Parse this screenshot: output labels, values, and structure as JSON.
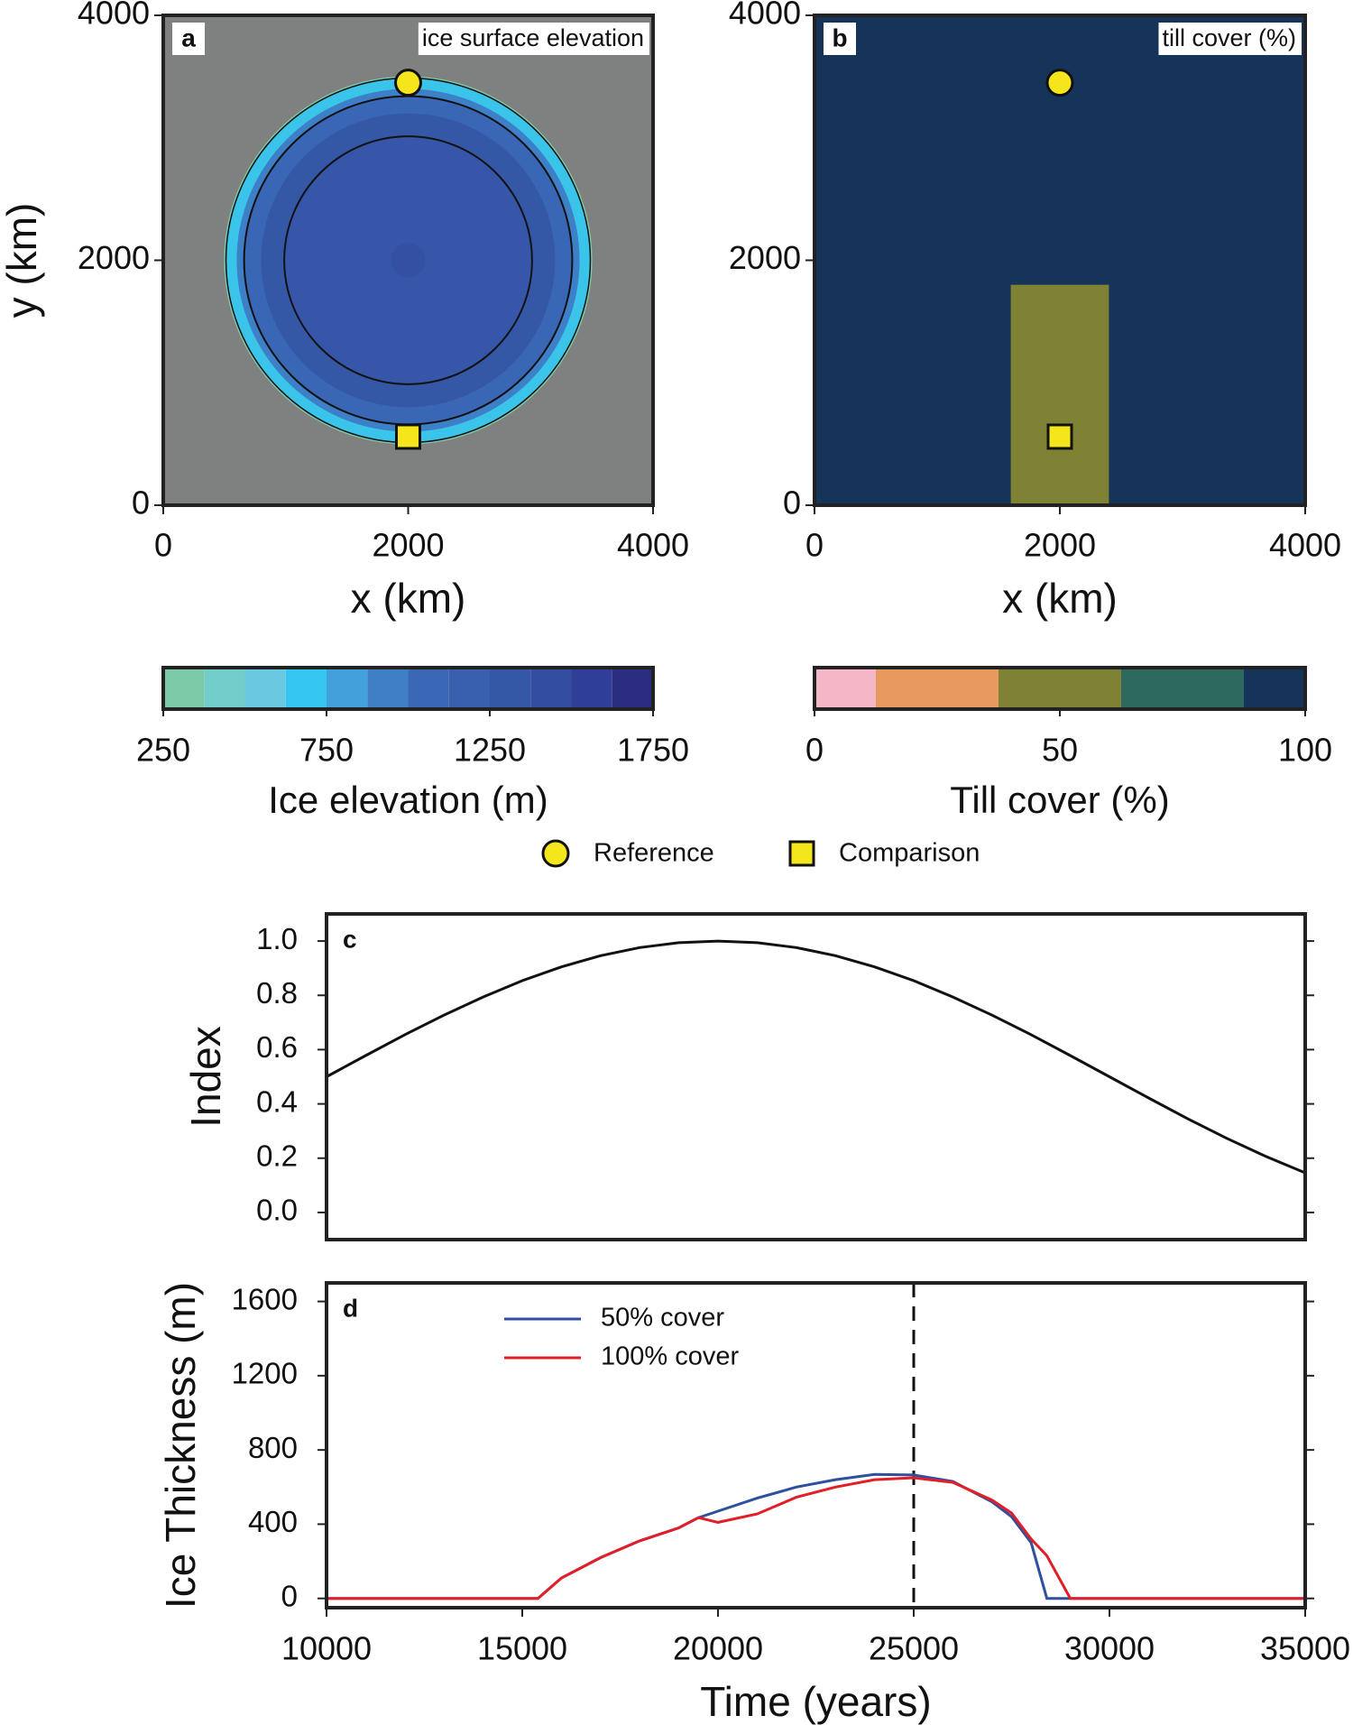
{
  "chart_data": [
    {
      "type": "map",
      "panel": "a",
      "title": "ice surface elevation",
      "xlabel": "x (km)",
      "ylabel": "y (km)",
      "xlim": [
        0,
        4000
      ],
      "ylim": [
        0,
        4000
      ],
      "xticks": [
        0,
        2000,
        4000
      ],
      "yticks": [
        0,
        2000,
        4000
      ],
      "color": "#7f8080"
    },
    {
      "type": "map",
      "panel": "b",
      "title": "till cover (%)",
      "xlabel": "x (km)",
      "xlim": [
        0,
        4000
      ],
      "ylim": [
        0,
        4000
      ],
      "xticks": [
        0,
        2000,
        4000
      ],
      "yticks": [
        0,
        2000,
        4000
      ],
      "color": "#163459",
      "till_patch": {
        "x": [
          1600,
          2400
        ],
        "y": [
          0,
          1800
        ],
        "color": "#7f8235"
      }
    },
    {
      "type": "colorbar",
      "label": "Ice elevation (m)",
      "xlim": [
        250,
        1750
      ],
      "xticks": [
        250,
        750,
        1250,
        1750
      ],
      "bounds": [
        250,
        375,
        500,
        625,
        750,
        875,
        1000,
        1125,
        1250,
        1375,
        1500,
        1625,
        1750
      ],
      "colors": [
        "#7dcaa7",
        "#73cdc9",
        "#6ac8e0",
        "#33c6f0",
        "#44a0db",
        "#3f7fc6",
        "#3a68b6",
        "#3860ae",
        "#3558a6",
        "#334ea0",
        "#2f3e98",
        "#2a2d80"
      ]
    },
    {
      "type": "colorbar",
      "label": "Till cover (%)",
      "xlim": [
        0,
        100
      ],
      "xticks": [
        0,
        50,
        100
      ],
      "bounds": [
        0,
        12.5,
        37.5,
        62.5,
        87.5,
        100
      ],
      "colors": [
        "#f5b6c8",
        "#e89a5e",
        "#7f8235",
        "#2e695e",
        "#163459"
      ]
    },
    {
      "type": "markers",
      "marker_color": "#f5e61c",
      "markers": [
        {
          "name": "Reference",
          "shape": "circle",
          "x": 2000,
          "y": 3450
        },
        {
          "name": "Comparison",
          "shape": "square",
          "x": 2000,
          "y": 560
        }
      ]
    },
    {
      "type": "line",
      "panel": "c",
      "ylabel": "Index",
      "xlim": [
        10000,
        35000
      ],
      "ylim": [
        -0.1,
        1.1
      ],
      "yticks": [
        {
          "value": 0,
          "label": "0.0"
        },
        0.2,
        0.4,
        0.6,
        0.8,
        {
          "value": 1,
          "label": "1.0"
        }
      ],
      "x": [
        10000,
        11000,
        12000,
        13000,
        14000,
        15000,
        16000,
        17000,
        18000,
        19000,
        20000,
        21000,
        22000,
        23000,
        24000,
        25000,
        26000,
        27000,
        28000,
        29000,
        30000,
        31000,
        32000,
        33000,
        34000,
        35000
      ],
      "series": [
        {
          "color": "#111111",
          "values": [
            0.5,
            0.578,
            0.655,
            0.727,
            0.794,
            0.854,
            0.905,
            0.946,
            0.976,
            0.994,
            1.0,
            0.994,
            0.976,
            0.946,
            0.905,
            0.854,
            0.794,
            0.727,
            0.655,
            0.578,
            0.5,
            0.422,
            0.345,
            0.273,
            0.206,
            0.146
          ]
        }
      ]
    },
    {
      "type": "line",
      "panel": "d",
      "xlabel": "Time (years)",
      "ylabel": "Ice Thickness (m)",
      "xlim": [
        10000,
        35000
      ],
      "ylim": [
        -50,
        1700
      ],
      "xticks": [
        10000,
        15000,
        20000,
        25000,
        30000,
        35000
      ],
      "yticks": [
        0,
        400,
        800,
        1200,
        1600
      ],
      "vline": 25000,
      "x": [
        10000,
        15400,
        16000,
        17000,
        18000,
        19000,
        19500,
        20000,
        21000,
        21500,
        22000,
        23000,
        24000,
        25000,
        26000,
        27000,
        27500,
        28000,
        28400,
        29000,
        35000
      ],
      "series": [
        {
          "name": "50% cover",
          "color": "#2f4f9f",
          "values": [
            0,
            0,
            110,
            220,
            310,
            380,
            435,
            470,
            540,
            570,
            600,
            640,
            668,
            665,
            630,
            520,
            440,
            300,
            0,
            0,
            0
          ]
        },
        {
          "name": "100% cover",
          "color": "#e21f26",
          "values": [
            0,
            0,
            110,
            220,
            310,
            380,
            435,
            410,
            455,
            500,
            545,
            600,
            640,
            650,
            625,
            530,
            460,
            320,
            230,
            0,
            0
          ]
        }
      ]
    }
  ]
}
